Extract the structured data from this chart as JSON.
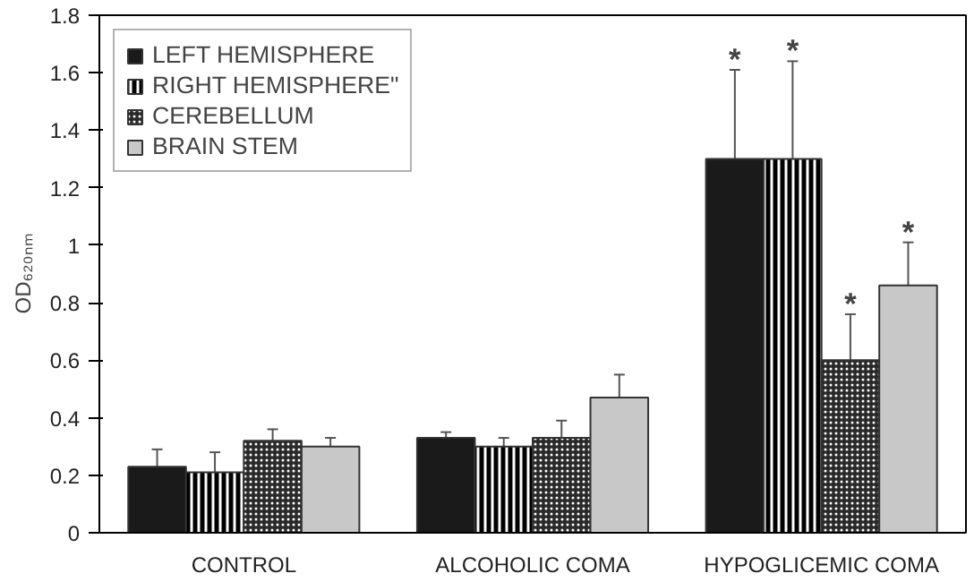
{
  "chart_data": {
    "type": "bar",
    "ylabel": "OD₆₂₀ₙₘ",
    "categories": [
      "CONTROL",
      "ALCOHOLIC COMA",
      "HYPOGLICEMIC COMA"
    ],
    "series": [
      {
        "name": "LEFT HEMISPHERE",
        "color": "#1a1a1a",
        "values": [
          0.23,
          0.33,
          1.3
        ],
        "errors": [
          0.06,
          0.02,
          0.31
        ],
        "value_labels": [
          null,
          null,
          "*"
        ]
      },
      {
        "name": "RIGHT HEMISPHERE\"",
        "color": "#000000",
        "values": [
          0.21,
          0.3,
          1.3
        ],
        "errors": [
          0.07,
          0.03,
          0.34
        ],
        "value_labels": [
          null,
          null,
          "*"
        ]
      },
      {
        "name": "CEREBELLUM",
        "color": "#2a2a2a",
        "values": [
          0.32,
          0.33,
          0.6
        ],
        "errors": [
          0.04,
          0.06,
          0.16
        ],
        "value_labels": [
          null,
          null,
          "*"
        ]
      },
      {
        "name": "BRAIN STEM",
        "color": "#c8c8c8",
        "values": [
          0.3,
          0.47,
          0.86
        ],
        "errors": [
          0.03,
          0.08,
          0.15
        ],
        "value_labels": [
          null,
          null,
          "*"
        ]
      }
    ],
    "ylim": [
      0,
      1.8
    ],
    "yticks": [
      0,
      0.2,
      0.4,
      0.6,
      0.8,
      1,
      1.2,
      1.4,
      1.6,
      1.8
    ],
    "grid": false,
    "legend": "top left"
  }
}
